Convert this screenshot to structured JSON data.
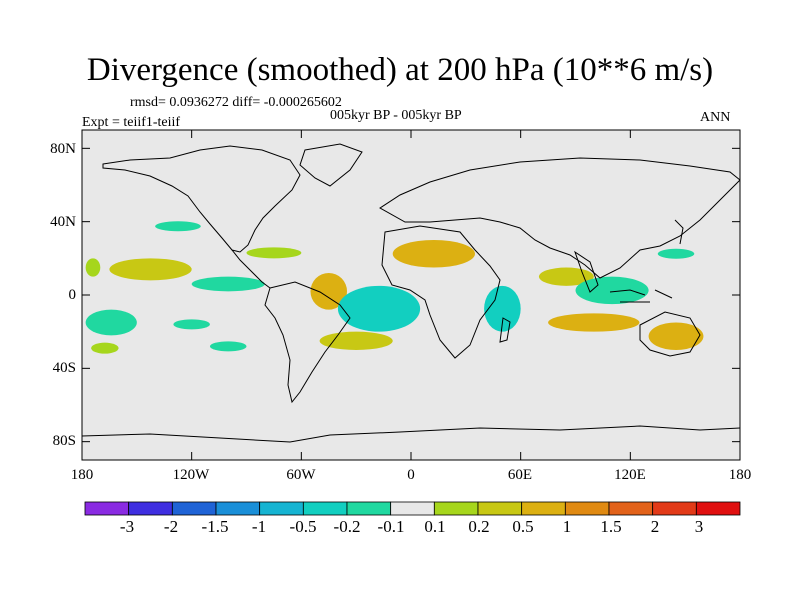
{
  "title": "Divergence (smoothed) at 200 hPa (10**6 m/s)",
  "stats": "rmsd= 0.0936272 diff= -0.000265602",
  "subtitle": "005kyr BP - 005kyr BP",
  "experiment": "Expt = teiif1-teiif",
  "season": "ANN",
  "yticks": [
    "80N",
    "40N",
    "0",
    "40S",
    "80S"
  ],
  "xticks": [
    "180",
    "120W",
    "60W",
    "0",
    "60E",
    "120E",
    "180"
  ],
  "colorbar": {
    "labels": [
      "-3",
      "-2",
      "-1.5",
      "-1",
      "-0.5",
      "-0.2",
      "-0.1",
      "0.1",
      "0.2",
      "0.5",
      "1",
      "1.5",
      "2",
      "3"
    ],
    "colors": [
      "#8a2be2",
      "#3f2ee0",
      "#1f63d6",
      "#1a8fd8",
      "#16b4d2",
      "#12cfc0",
      "#20d8a0",
      "#e8e8e8",
      "#a6d61c",
      "#c8c814",
      "#dcb012",
      "#e08a12",
      "#e2621a",
      "#e23a18",
      "#e01010"
    ]
  },
  "colors": {
    "background": "#e8e8e8",
    "neg_light": "#12cfc0",
    "neg_mid": "#16b4d2",
    "pos_light": "#a6d61c",
    "pos_mid": "#c8c814",
    "pos_high": "#dcb012"
  },
  "chart_data": {
    "type": "heatmap",
    "projection": "cylindrical-equidistant",
    "lon_range": [
      -180,
      180
    ],
    "lat_range": [
      -90,
      90
    ],
    "field": "200 hPa divergence difference (smoothed)",
    "units": "10**6 m/s",
    "contour_levels": [
      -3,
      -2,
      -1.5,
      -1,
      -0.5,
      -0.2,
      -0.1,
      0.1,
      0.2,
      0.5,
      1,
      1.5,
      2,
      3
    ],
    "regions": [
      {
        "name": "c1",
        "lon": [
          -178,
          -150
        ],
        "lat": [
          -22,
          -8
        ],
        "level": -0.2
      },
      {
        "name": "c2",
        "lon": [
          -175,
          -160
        ],
        "lat": [
          -32,
          -26
        ],
        "level": 0.1
      },
      {
        "name": "c3",
        "lon": [
          -178,
          -170
        ],
        "lat": [
          20,
          10
        ],
        "level": 0.1
      },
      {
        "name": "c4",
        "lon": [
          -165,
          -120
        ],
        "lat": [
          8,
          20
        ],
        "level": 0.2
      },
      {
        "name": "c5",
        "lon": [
          -120,
          -80
        ],
        "lat": [
          10,
          2
        ],
        "level": -0.2
      },
      {
        "name": "c6",
        "lon": [
          -130,
          -110
        ],
        "lat": [
          -18,
          -14
        ],
        "level": -0.2
      },
      {
        "name": "c7",
        "lon": [
          -110,
          -90
        ],
        "lat": [
          -30,
          -26
        ],
        "level": -0.2
      },
      {
        "name": "c8",
        "lon": [
          -90,
          -60
        ],
        "lat": [
          20,
          26
        ],
        "level": 0.1
      },
      {
        "name": "c9",
        "lon": [
          -55,
          -35
        ],
        "lat": [
          -8,
          12
        ],
        "level": 0.5
      },
      {
        "name": "c10",
        "lon": [
          -40,
          5
        ],
        "lat": [
          -20,
          5
        ],
        "level": -0.5
      },
      {
        "name": "c11",
        "lon": [
          -10,
          35
        ],
        "lat": [
          15,
          30
        ],
        "level": 0.5
      },
      {
        "name": "c12",
        "lon": [
          -50,
          -10
        ],
        "lat": [
          -30,
          -20
        ],
        "level": 0.2
      },
      {
        "name": "c13",
        "lon": [
          40,
          60
        ],
        "lat": [
          -20,
          5
        ],
        "level": -0.5
      },
      {
        "name": "c14",
        "lon": [
          70,
          100
        ],
        "lat": [
          5,
          15
        ],
        "level": 0.2
      },
      {
        "name": "c15",
        "lon": [
          90,
          130
        ],
        "lat": [
          -5,
          10
        ],
        "level": -0.2
      },
      {
        "name": "c16",
        "lon": [
          75,
          125
        ],
        "lat": [
          -20,
          -10
        ],
        "level": 0.5
      },
      {
        "name": "c17",
        "lon": [
          130,
          160
        ],
        "lat": [
          -30,
          -15
        ],
        "level": 0.5
      },
      {
        "name": "c18",
        "lon": [
          135,
          155
        ],
        "lat": [
          20,
          25
        ],
        "level": -0.2
      },
      {
        "name": "c19",
        "lon": [
          -140,
          -115
        ],
        "lat": [
          35,
          40
        ],
        "level": -0.2
      }
    ]
  }
}
